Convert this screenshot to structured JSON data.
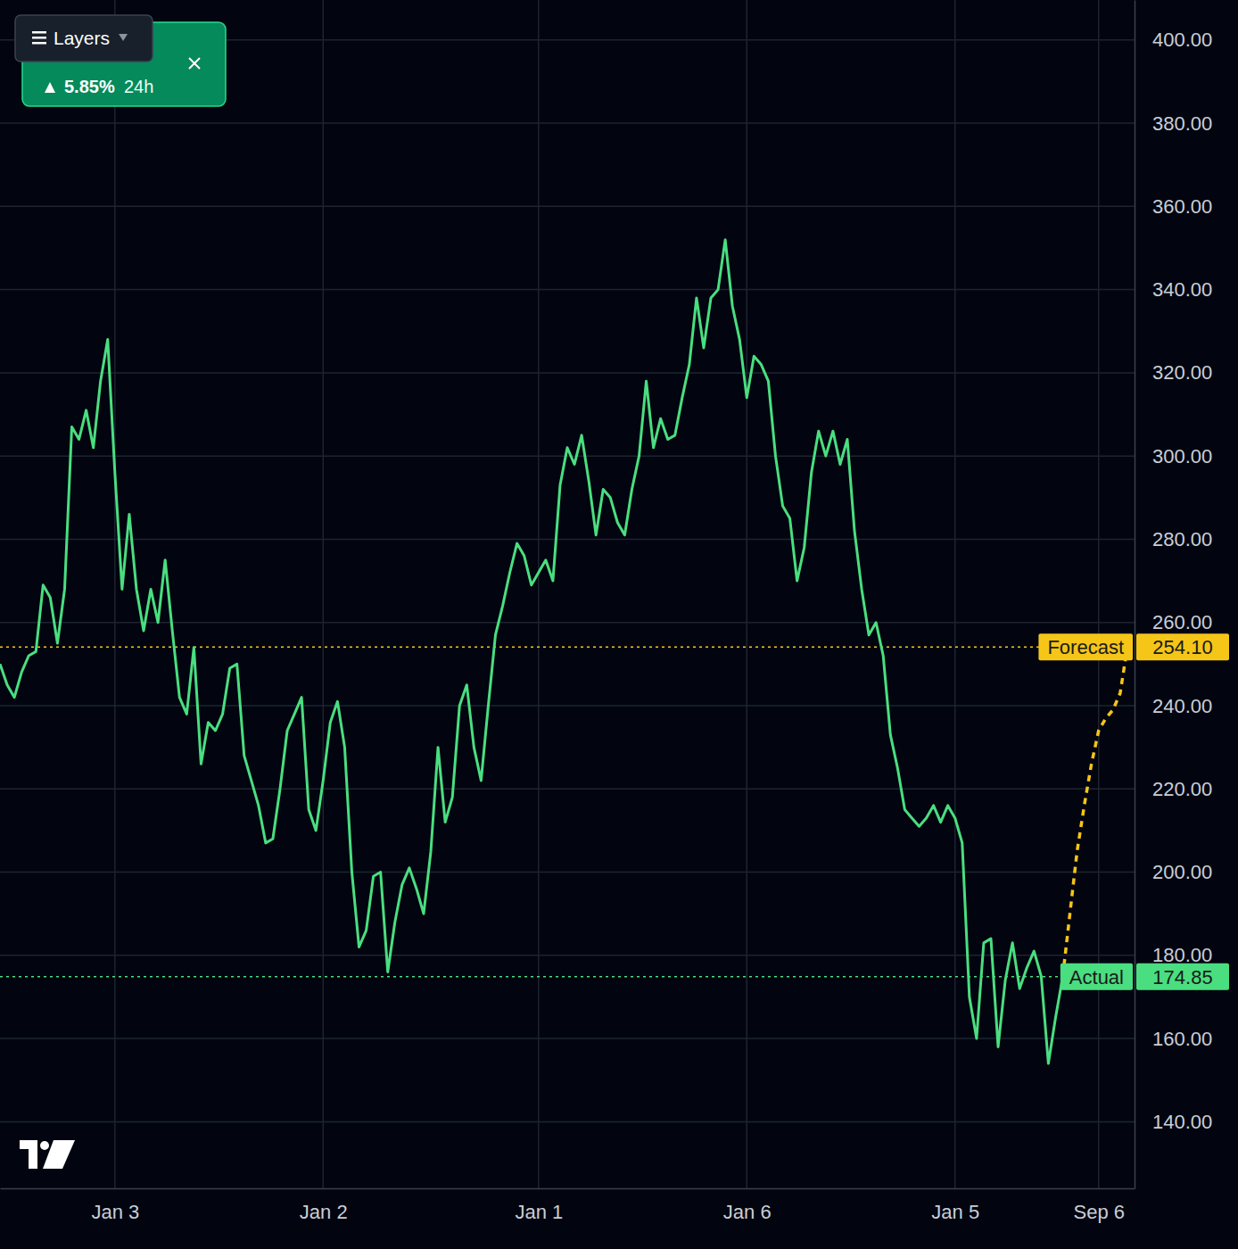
{
  "chart_data": {
    "type": "line",
    "grid": true,
    "categories": [
      null,
      null,
      null,
      null,
      null,
      null,
      null,
      null,
      null,
      null,
      null,
      null,
      null,
      null,
      null,
      null,
      "Jan 3",
      null,
      null,
      null,
      null,
      null,
      null,
      null,
      null,
      null,
      null,
      null,
      null,
      null,
      null,
      null,
      null,
      null,
      null,
      null,
      null,
      null,
      null,
      null,
      null,
      null,
      null,
      null,
      null,
      "Jan 2",
      null,
      null,
      null,
      null,
      null,
      null,
      null,
      null,
      null,
      null,
      null,
      null,
      null,
      null,
      null,
      null,
      null,
      null,
      null,
      null,
      null,
      null,
      null,
      null,
      null,
      null,
      null,
      null,
      null,
      "Jan 1",
      null,
      null,
      null,
      null,
      null,
      null,
      null,
      null,
      null,
      null,
      null,
      null,
      null,
      null,
      null,
      null,
      null,
      null,
      null,
      null,
      null,
      null,
      null,
      null,
      null,
      null,
      null,
      null,
      "Jan 6",
      null,
      null,
      null,
      null,
      null,
      null,
      null,
      null,
      null,
      null,
      null,
      null,
      null,
      null,
      null,
      null,
      null,
      null,
      null,
      null,
      null,
      null,
      null,
      null,
      null,
      null,
      null,
      null,
      "Jan 5",
      null,
      null,
      null,
      null,
      null,
      null,
      null,
      null,
      null,
      null,
      null,
      null,
      null,
      null,
      null,
      null,
      null,
      null,
      null,
      "Sep 6",
      null,
      null,
      null,
      null,
      null
    ],
    "series": [
      {
        "name": "Actual",
        "color": "#4ade80",
        "line_style": "solid",
        "last_label": "174.85",
        "values": [
          250,
          245,
          242,
          248,
          252,
          253,
          269,
          266,
          255,
          268,
          307,
          304,
          311,
          302,
          318,
          328,
          296,
          268,
          286,
          268,
          258,
          268,
          260,
          275,
          258,
          242,
          238,
          254,
          226,
          236,
          234,
          238,
          249,
          250,
          228,
          222,
          216,
          207,
          208,
          220,
          234,
          238,
          242,
          215,
          210,
          222,
          236,
          241,
          230,
          200,
          182,
          186,
          199,
          200,
          176,
          188,
          197,
          201,
          196,
          190,
          205,
          230,
          212,
          218,
          240,
          245,
          230,
          222,
          240,
          257,
          264,
          272,
          279,
          276,
          269,
          272,
          275,
          270,
          293,
          302,
          298,
          305,
          294,
          281,
          292,
          290,
          284,
          281,
          292,
          300,
          318,
          302,
          309,
          304,
          305,
          314,
          322,
          338,
          326,
          338,
          340,
          352,
          336,
          328,
          314,
          324,
          322,
          318,
          300,
          288,
          285,
          270,
          278,
          296,
          306,
          300,
          306,
          298,
          304,
          282,
          268,
          257,
          260,
          252,
          233,
          225,
          215,
          213,
          211,
          213,
          216,
          212,
          216,
          213,
          207,
          170,
          160,
          183,
          184,
          158,
          174,
          183,
          172,
          177,
          181,
          175,
          154,
          165,
          174.85,
          null,
          null,
          null,
          null,
          null,
          null,
          null,
          null,
          null,
          null
        ]
      },
      {
        "name": "Forecast",
        "color": "#f5c518",
        "line_style": "dotted",
        "last_label": "254.10",
        "values": [
          null,
          null,
          null,
          null,
          null,
          null,
          null,
          null,
          null,
          null,
          null,
          null,
          null,
          null,
          null,
          null,
          null,
          null,
          null,
          null,
          null,
          null,
          null,
          null,
          null,
          null,
          null,
          null,
          null,
          null,
          null,
          null,
          null,
          null,
          null,
          null,
          null,
          null,
          null,
          null,
          null,
          null,
          null,
          null,
          null,
          null,
          null,
          null,
          null,
          null,
          null,
          null,
          null,
          null,
          null,
          null,
          null,
          null,
          null,
          null,
          null,
          null,
          null,
          null,
          null,
          null,
          null,
          null,
          null,
          null,
          null,
          null,
          null,
          null,
          null,
          null,
          null,
          null,
          null,
          null,
          null,
          null,
          null,
          null,
          null,
          null,
          null,
          null,
          null,
          null,
          null,
          null,
          null,
          null,
          null,
          null,
          null,
          null,
          null,
          null,
          null,
          null,
          null,
          null,
          null,
          null,
          null,
          null,
          null,
          null,
          null,
          null,
          null,
          null,
          null,
          null,
          null,
          null,
          null,
          null,
          null,
          null,
          null,
          null,
          null,
          null,
          null,
          null,
          null,
          null,
          null,
          null,
          null,
          null,
          null,
          null,
          null,
          null,
          null,
          null,
          null,
          null,
          null,
          null,
          null,
          null,
          null,
          null,
          174.85,
          190,
          205,
          216,
          226,
          234,
          237,
          239,
          243,
          254.1,
          null
        ]
      }
    ],
    "ylim": [
      124,
      409.6
    ],
    "yticks": [
      {
        "value": 140,
        "label": "140.00"
      },
      {
        "value": 160,
        "label": "160.00"
      },
      {
        "value": 180,
        "label": "180.00"
      },
      {
        "value": 200,
        "label": "200.00"
      },
      {
        "value": 220,
        "label": "220.00"
      },
      {
        "value": 240,
        "label": "240.00"
      },
      {
        "value": 260,
        "label": "260.00"
      },
      {
        "value": 280,
        "label": "280.00"
      },
      {
        "value": 300,
        "label": "300.00"
      },
      {
        "value": 320,
        "label": "320.00"
      },
      {
        "value": 340,
        "label": "340.00"
      },
      {
        "value": 360,
        "label": "360.00"
      },
      {
        "value": 380,
        "label": "380.00"
      },
      {
        "value": 400,
        "label": "400.00"
      }
    ]
  },
  "header": {
    "change": "5.85%",
    "period": "24h",
    "layers_button": "Layers"
  }
}
